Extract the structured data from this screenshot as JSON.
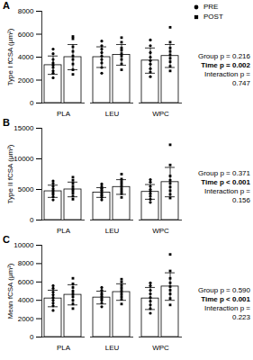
{
  "chart_data": [
    {
      "type": "bar",
      "title": "A",
      "y_label": "Type I fCSA (μm²)",
      "categories": [
        "PLA",
        "LEU",
        "WPC"
      ],
      "ylim": [
        0,
        8000
      ],
      "yticks": [
        0,
        2000,
        4000,
        6000,
        8000
      ],
      "legend": "top-right",
      "annotations": [
        "Group p = 0.216",
        "Time p = 0.002",
        "Interaction p = 0.747"
      ],
      "series": [
        {
          "name": "PRE",
          "color": "#ffffff",
          "marker": "circle",
          "values": [
            3300,
            4000,
            3700
          ],
          "errors": [
            800,
            900,
            1100
          ],
          "points": [
            [
              2200,
              2600,
              2800,
              3100,
              3300,
              3500,
              3800,
              4300,
              4700
            ],
            [
              2600,
              3100,
              3500,
              3800,
              4100,
              4400,
              4700,
              5000,
              5400
            ],
            [
              2300,
              2700,
              3000,
              3400,
              3700,
              4000,
              4400,
              5000,
              5500
            ]
          ]
        },
        {
          "name": "POST",
          "color": "#ffffff",
          "marker": "square",
          "values": [
            4000,
            4200,
            4100
          ],
          "errors": [
            1100,
            900,
            1000
          ],
          "points": [
            [
              2500,
              2900,
              3400,
              3800,
              4100,
              4500,
              4900,
              5600,
              5800
            ],
            [
              2900,
              3400,
              3800,
              4100,
              4300,
              4600,
              4800,
              5300,
              5700
            ],
            [
              2800,
              3200,
              3600,
              3900,
              4200,
              4500,
              4800,
              5300,
              6600
            ]
          ]
        }
      ]
    },
    {
      "type": "bar",
      "title": "B",
      "y_label": "Type II fCSA (μm²)",
      "categories": [
        "PLA",
        "LEU",
        "WPC"
      ],
      "ylim": [
        0,
        15000
      ],
      "yticks": [
        0,
        5000,
        10000,
        15000
      ],
      "annotations": [
        "Group p = 0.371",
        "Time p < 0.001",
        "Interaction p = 0.156"
      ],
      "series": [
        {
          "name": "PRE",
          "color": "#ffffff",
          "marker": "circle",
          "values": [
            4700,
            4500,
            4600
          ],
          "errors": [
            1000,
            800,
            1200
          ],
          "points": [
            [
              3300,
              3800,
              4200,
              4500,
              4800,
              5100,
              5500,
              6000,
              6400
            ],
            [
              3300,
              3700,
              4000,
              4300,
              4600,
              4900,
              5200,
              5500,
              5900
            ],
            [
              2900,
              3400,
              3900,
              4300,
              4700,
              5000,
              5500,
              6200,
              6600
            ]
          ]
        },
        {
          "name": "POST",
          "color": "#ffffff",
          "marker": "square",
          "values": [
            5000,
            5400,
            6200
          ],
          "errors": [
            1200,
            1200,
            2400
          ],
          "points": [
            [
              3400,
              3900,
              4400,
              4800,
              5100,
              5500,
              6000,
              6500,
              7000
            ],
            [
              3700,
              4300,
              4700,
              5100,
              5500,
              5900,
              6300,
              6700,
              7500
            ],
            [
              3600,
              4200,
              4800,
              5400,
              6000,
              6500,
              7200,
              9000,
              12300
            ]
          ]
        }
      ]
    },
    {
      "type": "bar",
      "title": "C",
      "y_label": "Mean fCSA (μm²)",
      "categories": [
        "PLA",
        "LEU",
        "WPC"
      ],
      "ylim": [
        0,
        10000
      ],
      "yticks": [
        0,
        2000,
        4000,
        6000,
        8000,
        10000
      ],
      "annotations": [
        "Group p = 0.590",
        "Time p < 0.001",
        "Interaction p = 0.223"
      ],
      "series": [
        {
          "name": "PRE",
          "color": "#ffffff",
          "marker": "circle",
          "values": [
            4200,
            4300,
            4200
          ],
          "errors": [
            900,
            700,
            1200
          ],
          "points": [
            [
              2900,
              3400,
              3700,
              4000,
              4300,
              4600,
              4900,
              5300,
              5600
            ],
            [
              3300,
              3700,
              4000,
              4200,
              4400,
              4600,
              4800,
              5100,
              5400
            ],
            [
              2600,
              3100,
              3500,
              3900,
              4300,
              4700,
              5100,
              5600,
              5900
            ]
          ]
        },
        {
          "name": "POST",
          "color": "#ffffff",
          "marker": "square",
          "values": [
            4600,
            4900,
            5500
          ],
          "errors": [
            1100,
            900,
            1500
          ],
          "points": [
            [
              3100,
              3600,
              4000,
              4400,
              4700,
              5000,
              5400,
              5800,
              6400
            ],
            [
              3600,
              4100,
              4400,
              4700,
              5000,
              5300,
              5600,
              6000,
              6300
            ],
            [
              3500,
              4200,
              4700,
              5100,
              5500,
              5900,
              6400,
              7200,
              9000
            ]
          ]
        }
      ]
    }
  ]
}
